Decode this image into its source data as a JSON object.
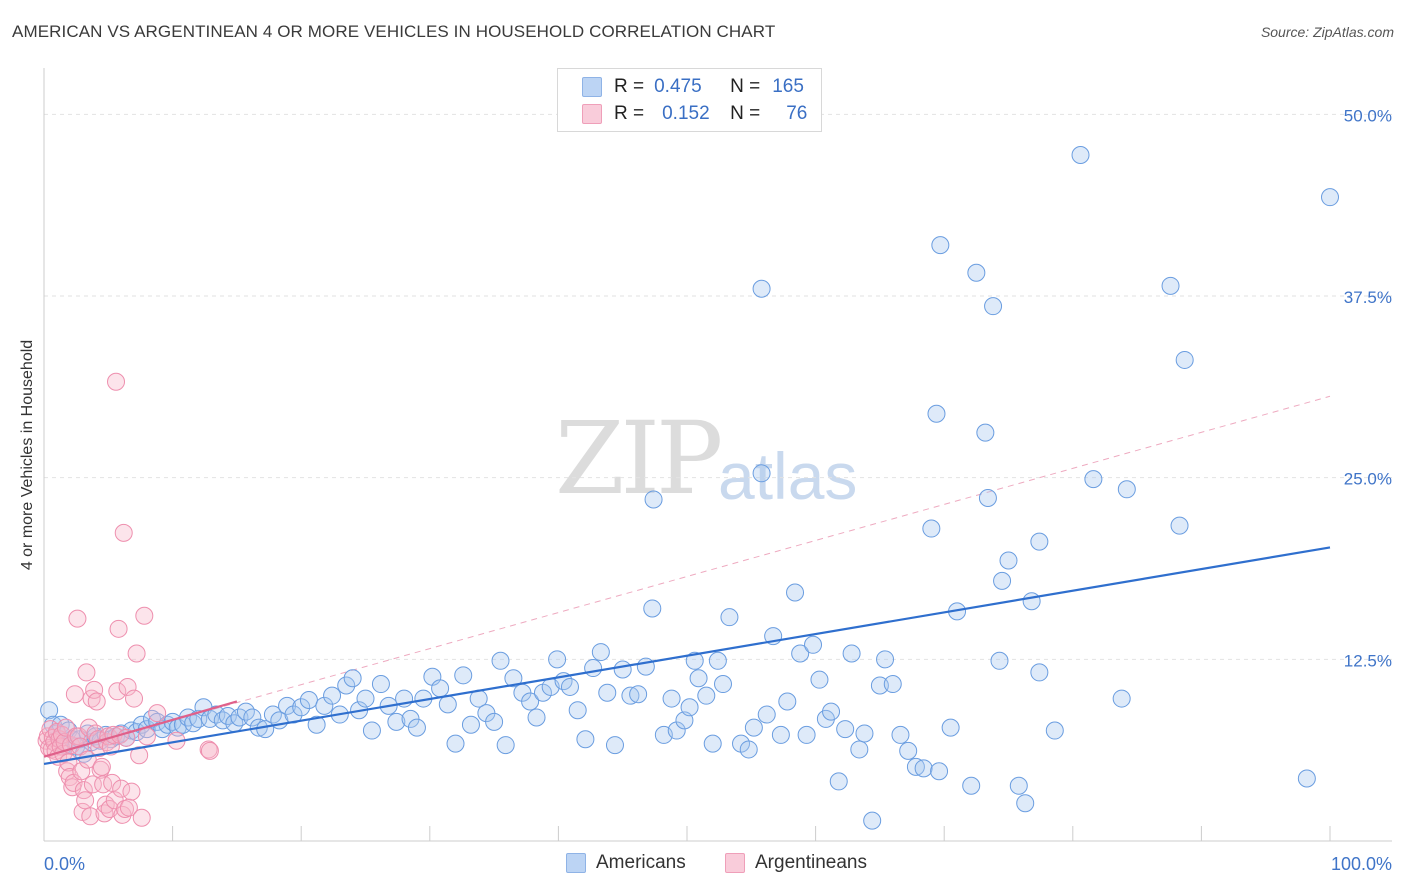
{
  "title": "AMERICAN VS ARGENTINEAN 4 OR MORE VEHICLES IN HOUSEHOLD CORRELATION CHART",
  "source": "Source: ZipAtlas.com",
  "watermark": {
    "zip": "ZIP",
    "atlas": "atlas"
  },
  "legend": {
    "rows": [
      {
        "r_label": "R =",
        "r_value": "0.475",
        "n_label": "N =",
        "n_value": "165",
        "color": "#a8c8f0"
      },
      {
        "r_label": "R =",
        "r_value": "0.152",
        "n_label": "N =",
        "n_value": "76",
        "color": "#f6b8cb"
      }
    ]
  },
  "bottom_legend": {
    "americans": "Americans",
    "argentineans": "Argentineans"
  },
  "chart_data": {
    "type": "scatter",
    "ylabel": "4 or more Vehicles in Household",
    "xlim": [
      0,
      100
    ],
    "ylim": [
      0,
      52.5
    ],
    "x_tick_labels": [
      "0.0%",
      "100.0%"
    ],
    "y_ticks": [
      12.5,
      25.0,
      37.5,
      50.0
    ],
    "y_tick_labels": [
      "12.5%",
      "25.0%",
      "37.5%",
      "50.0%"
    ],
    "grid": true,
    "colors": {
      "americans": "#6a9de0",
      "americans_line": "#2f6fce",
      "argentineans": "#f08fb0",
      "argentineans_line": "#e0608a",
      "tick_label": "#3f74c8"
    },
    "series": [
      {
        "name": "Americans",
        "trend": {
          "x": [
            0,
            100
          ],
          "y": [
            5.3,
            20.2
          ]
        },
        "points": [
          [
            0.4,
            9.0
          ],
          [
            0.7,
            8.0
          ],
          [
            1.0,
            7.4
          ],
          [
            1.3,
            8.0
          ],
          [
            1.6,
            6.6
          ],
          [
            1.9,
            7.6
          ],
          [
            2.2,
            7.0
          ],
          [
            2.5,
            6.5
          ],
          [
            2.8,
            7.0
          ],
          [
            3.1,
            6.0
          ],
          [
            3.4,
            7.4
          ],
          [
            3.7,
            6.8
          ],
          [
            4.0,
            7.2
          ],
          [
            4.4,
            6.9
          ],
          [
            4.8,
            7.3
          ],
          [
            5.2,
            7.0
          ],
          [
            5.6,
            7.2
          ],
          [
            6.0,
            7.4
          ],
          [
            6.4,
            7.1
          ],
          [
            6.8,
            7.6
          ],
          [
            7.2,
            7.5
          ],
          [
            7.6,
            8.0
          ],
          [
            8.0,
            7.7
          ],
          [
            8.4,
            8.4
          ],
          [
            8.8,
            8.2
          ],
          [
            9.2,
            7.7
          ],
          [
            9.6,
            8.0
          ],
          [
            10.0,
            8.2
          ],
          [
            10.4,
            7.8
          ],
          [
            10.8,
            8.0
          ],
          [
            11.2,
            8.5
          ],
          [
            11.6,
            8.1
          ],
          [
            12.0,
            8.4
          ],
          [
            12.4,
            9.2
          ],
          [
            12.9,
            8.4
          ],
          [
            13.4,
            8.7
          ],
          [
            13.9,
            8.3
          ],
          [
            14.3,
            8.6
          ],
          [
            14.8,
            8.1
          ],
          [
            15.2,
            8.5
          ],
          [
            15.7,
            8.9
          ],
          [
            16.2,
            8.5
          ],
          [
            16.7,
            7.8
          ],
          [
            17.2,
            7.7
          ],
          [
            17.8,
            8.7
          ],
          [
            18.3,
            8.3
          ],
          [
            18.9,
            9.3
          ],
          [
            19.4,
            8.7
          ],
          [
            20.0,
            9.2
          ],
          [
            20.6,
            9.7
          ],
          [
            21.2,
            8.0
          ],
          [
            21.8,
            9.3
          ],
          [
            22.4,
            10.0
          ],
          [
            23.0,
            8.7
          ],
          [
            23.5,
            10.7
          ],
          [
            24.0,
            11.2
          ],
          [
            24.5,
            9.0
          ],
          [
            25.0,
            9.8
          ],
          [
            25.5,
            7.6
          ],
          [
            26.2,
            10.8
          ],
          [
            26.8,
            9.3
          ],
          [
            27.4,
            8.2
          ],
          [
            28.0,
            9.8
          ],
          [
            28.5,
            8.4
          ],
          [
            29.0,
            7.8
          ],
          [
            29.5,
            9.8
          ],
          [
            30.2,
            11.3
          ],
          [
            30.8,
            10.5
          ],
          [
            31.4,
            9.4
          ],
          [
            32.0,
            6.7
          ],
          [
            32.6,
            11.4
          ],
          [
            33.2,
            8.0
          ],
          [
            33.8,
            9.8
          ],
          [
            34.4,
            8.8
          ],
          [
            35.0,
            8.2
          ],
          [
            35.5,
            12.4
          ],
          [
            35.9,
            6.6
          ],
          [
            36.5,
            11.2
          ],
          [
            37.2,
            10.2
          ],
          [
            37.8,
            9.6
          ],
          [
            38.3,
            8.5
          ],
          [
            38.8,
            10.2
          ],
          [
            39.4,
            10.6
          ],
          [
            39.9,
            12.5
          ],
          [
            40.4,
            11.0
          ],
          [
            40.9,
            10.6
          ],
          [
            41.5,
            9.0
          ],
          [
            42.1,
            7.0
          ],
          [
            42.7,
            11.9
          ],
          [
            43.3,
            13.0
          ],
          [
            43.8,
            10.2
          ],
          [
            44.4,
            6.6
          ],
          [
            45.0,
            11.8
          ],
          [
            45.6,
            10.0
          ],
          [
            46.2,
            10.1
          ],
          [
            46.8,
            12.0
          ],
          [
            47.4,
            23.5
          ],
          [
            47.3,
            16.0
          ],
          [
            48.2,
            7.3
          ],
          [
            48.8,
            9.8
          ],
          [
            49.2,
            7.6
          ],
          [
            49.8,
            8.3
          ],
          [
            50.2,
            9.2
          ],
          [
            50.6,
            12.4
          ],
          [
            50.9,
            11.2
          ],
          [
            51.5,
            10.0
          ],
          [
            52.0,
            6.7
          ],
          [
            52.4,
            12.4
          ],
          [
            52.8,
            10.8
          ],
          [
            53.3,
            15.4
          ],
          [
            54.2,
            6.7
          ],
          [
            54.8,
            6.3
          ],
          [
            55.2,
            7.8
          ],
          [
            55.8,
            25.3
          ],
          [
            55.8,
            38.0
          ],
          [
            56.2,
            8.7
          ],
          [
            56.7,
            14.1
          ],
          [
            57.3,
            7.3
          ],
          [
            57.8,
            9.6
          ],
          [
            58.4,
            17.1
          ],
          [
            58.8,
            12.9
          ],
          [
            59.3,
            7.3
          ],
          [
            59.8,
            13.5
          ],
          [
            60.3,
            11.1
          ],
          [
            60.8,
            8.4
          ],
          [
            61.2,
            8.9
          ],
          [
            61.8,
            4.1
          ],
          [
            62.3,
            7.7
          ],
          [
            62.8,
            12.9
          ],
          [
            63.4,
            6.3
          ],
          [
            63.8,
            7.4
          ],
          [
            64.4,
            1.4
          ],
          [
            65.0,
            10.7
          ],
          [
            65.4,
            12.5
          ],
          [
            66.0,
            10.8
          ],
          [
            66.6,
            7.3
          ],
          [
            67.2,
            6.2
          ],
          [
            67.8,
            5.1
          ],
          [
            68.4,
            5.0
          ],
          [
            69.0,
            21.5
          ],
          [
            69.6,
            4.8
          ],
          [
            69.7,
            41.0
          ],
          [
            69.4,
            29.4
          ],
          [
            70.5,
            7.8
          ],
          [
            71.0,
            15.8
          ],
          [
            72.1,
            3.8
          ],
          [
            72.5,
            39.1
          ],
          [
            73.2,
            28.1
          ],
          [
            73.4,
            23.6
          ],
          [
            73.8,
            36.8
          ],
          [
            74.3,
            12.4
          ],
          [
            75.0,
            19.3
          ],
          [
            74.5,
            17.9
          ],
          [
            75.8,
            3.8
          ],
          [
            76.3,
            2.6
          ],
          [
            76.8,
            16.5
          ],
          [
            77.4,
            11.6
          ],
          [
            77.4,
            20.6
          ],
          [
            78.6,
            7.6
          ],
          [
            80.6,
            47.2
          ],
          [
            81.6,
            24.9
          ],
          [
            83.8,
            9.8
          ],
          [
            84.2,
            24.2
          ],
          [
            87.6,
            38.2
          ],
          [
            88.7,
            33.1
          ],
          [
            88.3,
            21.7
          ],
          [
            98.2,
            4.3
          ],
          [
            100.0,
            44.3
          ]
        ]
      },
      {
        "name": "Argentineans",
        "trend": {
          "x": [
            0,
            15
          ],
          "y": [
            5.8,
            9.6
          ]
        },
        "points": [
          [
            0.2,
            6.9
          ],
          [
            0.3,
            7.2
          ],
          [
            0.4,
            6.4
          ],
          [
            0.5,
            7.7
          ],
          [
            0.6,
            6.3
          ],
          [
            0.7,
            7.1
          ],
          [
            0.8,
            6.8
          ],
          [
            0.9,
            6.2
          ],
          [
            1.0,
            7.5
          ],
          [
            1.1,
            5.8
          ],
          [
            1.2,
            7.0
          ],
          [
            1.3,
            6.5
          ],
          [
            1.4,
            7.3
          ],
          [
            1.5,
            6.0
          ],
          [
            1.6,
            6.8
          ],
          [
            1.7,
            7.8
          ],
          [
            1.8,
            4.8
          ],
          [
            1.9,
            5.4
          ],
          [
            2.0,
            4.4
          ],
          [
            2.1,
            6.6
          ],
          [
            2.2,
            3.7
          ],
          [
            2.3,
            4.0
          ],
          [
            2.4,
            10.1
          ],
          [
            2.5,
            7.2
          ],
          [
            2.6,
            15.3
          ],
          [
            2.7,
            7.2
          ],
          [
            2.8,
            6.5
          ],
          [
            2.9,
            4.8
          ],
          [
            3.0,
            2.0
          ],
          [
            3.1,
            3.5
          ],
          [
            3.2,
            2.8
          ],
          [
            3.3,
            11.6
          ],
          [
            3.4,
            5.6
          ],
          [
            3.5,
            7.8
          ],
          [
            3.6,
            1.7
          ],
          [
            3.7,
            9.8
          ],
          [
            3.8,
            3.9
          ],
          [
            3.9,
            10.4
          ],
          [
            4.0,
            7.4
          ],
          [
            4.1,
            9.6
          ],
          [
            4.2,
            7.0
          ],
          [
            4.3,
            6.4
          ],
          [
            4.4,
            4.9
          ],
          [
            4.5,
            5.1
          ],
          [
            4.6,
            3.9
          ],
          [
            4.7,
            1.9
          ],
          [
            4.8,
            2.5
          ],
          [
            4.9,
            6.8
          ],
          [
            5.0,
            7.2
          ],
          [
            5.1,
            2.2
          ],
          [
            5.2,
            6.5
          ],
          [
            5.3,
            4.0
          ],
          [
            5.4,
            7.3
          ],
          [
            5.5,
            2.8
          ],
          [
            5.6,
            31.6
          ],
          [
            5.7,
            10.3
          ],
          [
            5.8,
            14.6
          ],
          [
            5.9,
            7.3
          ],
          [
            6.0,
            3.6
          ],
          [
            6.1,
            1.8
          ],
          [
            6.2,
            21.2
          ],
          [
            6.3,
            2.2
          ],
          [
            6.4,
            7.1
          ],
          [
            6.5,
            10.6
          ],
          [
            6.6,
            2.3
          ],
          [
            6.8,
            3.4
          ],
          [
            7.0,
            9.8
          ],
          [
            7.2,
            12.9
          ],
          [
            7.4,
            5.9
          ],
          [
            7.6,
            1.6
          ],
          [
            7.8,
            15.5
          ],
          [
            8.0,
            7.2
          ],
          [
            8.8,
            8.8
          ],
          [
            10.3,
            6.9
          ],
          [
            12.8,
            6.3
          ],
          [
            12.9,
            6.2
          ]
        ]
      }
    ],
    "diagonal_reference": {
      "x": [
        0,
        100
      ],
      "y": [
        5.8,
        30.6
      ]
    }
  }
}
